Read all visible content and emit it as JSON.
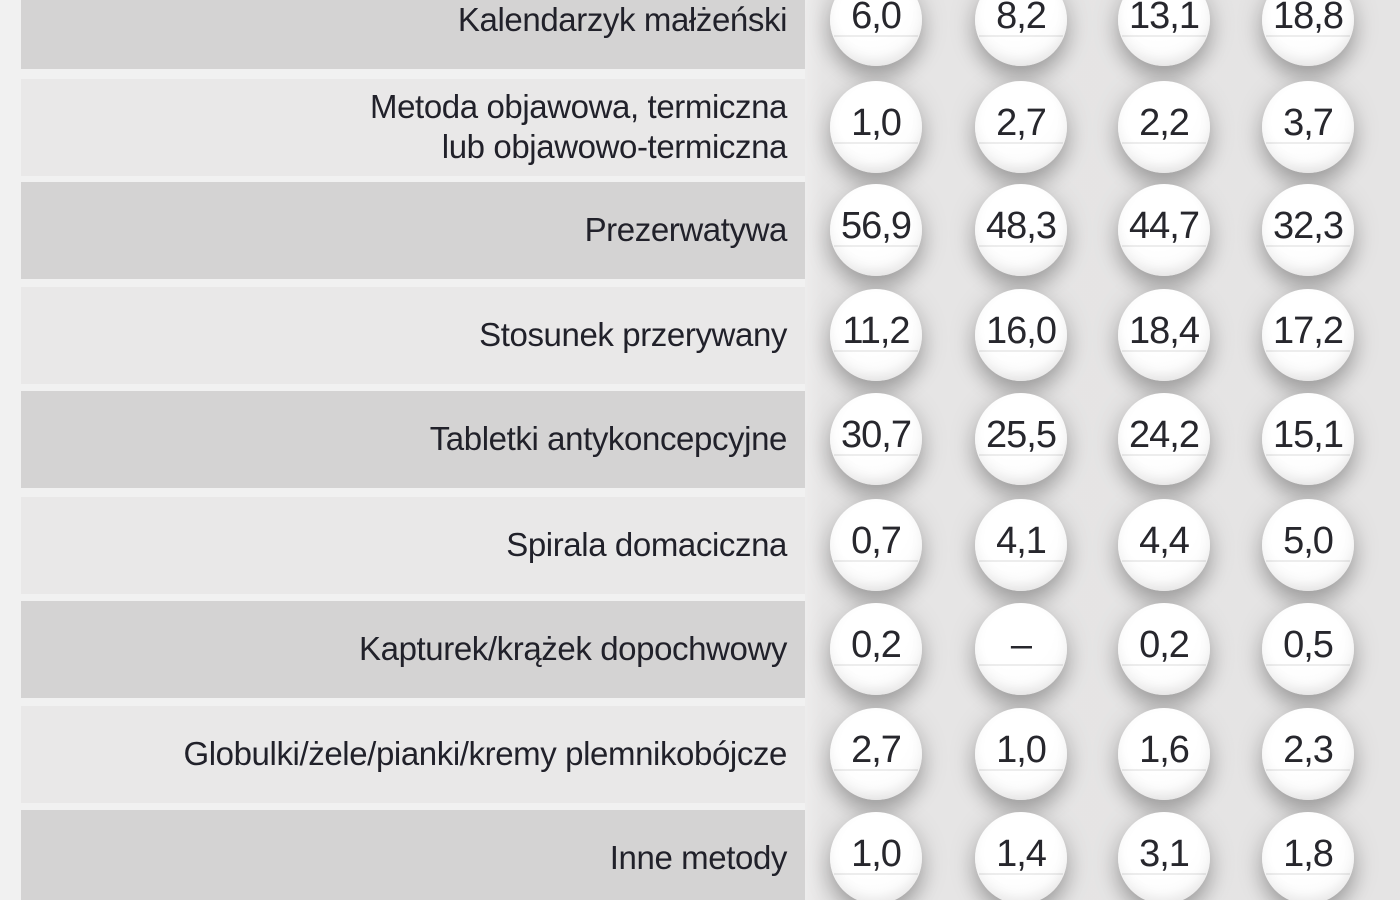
{
  "colors": {
    "page_bg": "#f1f1f1",
    "band_dark": "#d4d3d3",
    "band_light": "#e9e8e8",
    "pill_panel_bg": "#e5e4e4",
    "pill_fill": "#ffffff",
    "label_text": "#21212a",
    "value_text": "#27272d"
  },
  "table": {
    "rows": [
      {
        "label": "Kalendarzyk małżeński",
        "values": [
          "6,0",
          "8,2",
          "13,1",
          "18,8"
        ]
      },
      {
        "label": "Metoda objawowa, termiczna\nlub objawowo-termiczna",
        "values": [
          "1,0",
          "2,7",
          "2,2",
          "3,7"
        ]
      },
      {
        "label": "Prezerwatywa",
        "values": [
          "56,9",
          "48,3",
          "44,7",
          "32,3"
        ]
      },
      {
        "label": "Stosunek przerywany",
        "values": [
          "11,2",
          "16,0",
          "18,4",
          "17,2"
        ]
      },
      {
        "label": "Tabletki antykoncepcyjne",
        "values": [
          "30,7",
          "25,5",
          "24,2",
          "15,1"
        ]
      },
      {
        "label": "Spirala domaciczna",
        "values": [
          "0,7",
          "4,1",
          "4,4",
          "5,0"
        ]
      },
      {
        "label": "Kapturek/krążek dopochwowy",
        "values": [
          "0,2",
          "–",
          "0,2",
          "0,5"
        ]
      },
      {
        "label": "Globulki/żele/pianki/kremy plemnikobójcze",
        "values": [
          "2,7",
          "1,0",
          "1,6",
          "2,3"
        ]
      },
      {
        "label": "Inne metody",
        "values": [
          "1,0",
          "1,4",
          "3,1",
          "1,8"
        ]
      }
    ]
  },
  "chart_data": {
    "type": "table",
    "categories": [
      "Kalendarzyk małżeński",
      "Metoda objawowa, termiczna lub objawowo-termiczna",
      "Prezerwatywa",
      "Stosunek przerywany",
      "Tabletki antykoncepcyjne",
      "Spirala domaciczna",
      "Kapturek/krążek dopochwowy",
      "Globulki/żele/pianki/kremy plemnikobójcze",
      "Inne metody"
    ],
    "series": [
      {
        "name": "",
        "values": [
          6.0,
          1.0,
          56.9,
          11.2,
          30.7,
          0.7,
          0.2,
          2.7,
          1.0
        ]
      },
      {
        "name": "",
        "values": [
          8.2,
          2.7,
          48.3,
          16.0,
          25.5,
          4.1,
          null,
          1.0,
          1.4
        ]
      },
      {
        "name": "",
        "values": [
          13.1,
          2.2,
          44.7,
          18.4,
          24.2,
          4.4,
          0.2,
          1.6,
          3.1
        ]
      },
      {
        "name": "",
        "values": [
          18.8,
          3.7,
          32.3,
          17.2,
          15.1,
          5.0,
          0.5,
          2.3,
          1.8
        ]
      }
    ],
    "title": "",
    "xlabel": "",
    "ylabel": "",
    "notes": "decimal comma formatting; missing value shown as –"
  }
}
